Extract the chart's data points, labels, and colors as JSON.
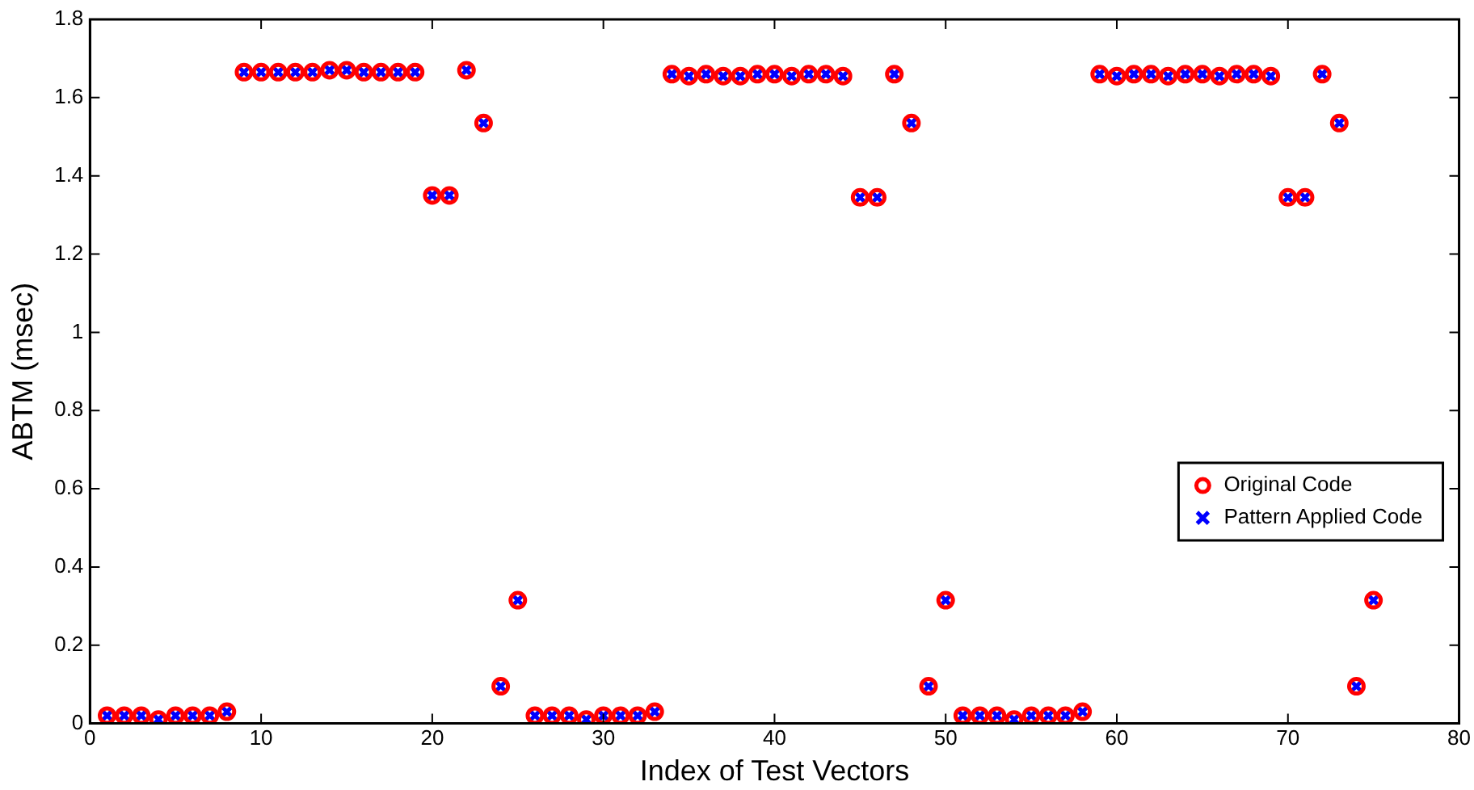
{
  "chart_data": {
    "type": "scatter",
    "xlabel": "Index of Test Vectors",
    "ylabel": "ABTM (msec)",
    "x": [
      1,
      2,
      3,
      4,
      5,
      6,
      7,
      8,
      9,
      10,
      11,
      12,
      13,
      14,
      15,
      16,
      17,
      18,
      19,
      20,
      21,
      22,
      23,
      24,
      25,
      26,
      27,
      28,
      29,
      30,
      31,
      32,
      33,
      34,
      35,
      36,
      37,
      38,
      39,
      40,
      41,
      42,
      43,
      44,
      45,
      46,
      47,
      48,
      49,
      50,
      51,
      52,
      53,
      54,
      55,
      56,
      57,
      58,
      59,
      60,
      61,
      62,
      63,
      64,
      65,
      66,
      67,
      68,
      69,
      70,
      71,
      72,
      73,
      74,
      75
    ],
    "series": [
      {
        "name": "Original Code",
        "color": "#ff0000",
        "marker": "circle",
        "values": [
          0.02,
          0.02,
          0.02,
          0.01,
          0.02,
          0.02,
          0.02,
          0.03,
          1.665,
          1.665,
          1.665,
          1.665,
          1.665,
          1.67,
          1.67,
          1.665,
          1.665,
          1.665,
          1.665,
          1.35,
          1.35,
          1.67,
          1.535,
          0.095,
          0.315,
          0.02,
          0.02,
          0.02,
          0.01,
          0.02,
          0.02,
          0.02,
          0.03,
          1.66,
          1.655,
          1.66,
          1.655,
          1.655,
          1.66,
          1.66,
          1.655,
          1.66,
          1.66,
          1.655,
          1.345,
          1.345,
          1.66,
          1.535,
          0.095,
          0.315,
          0.02,
          0.02,
          0.02,
          0.01,
          0.02,
          0.02,
          0.02,
          0.03,
          1.66,
          1.655,
          1.66,
          1.66,
          1.655,
          1.66,
          1.66,
          1.655,
          1.66,
          1.66,
          1.655,
          1.345,
          1.345,
          1.66,
          1.535,
          0.095,
          0.315
        ]
      },
      {
        "name": "Pattern Applied Code",
        "color": "#0000ff",
        "marker": "cross",
        "values": [
          0.02,
          0.02,
          0.02,
          0.01,
          0.02,
          0.02,
          0.02,
          0.03,
          1.665,
          1.665,
          1.665,
          1.665,
          1.665,
          1.67,
          1.67,
          1.665,
          1.665,
          1.665,
          1.665,
          1.35,
          1.35,
          1.67,
          1.535,
          0.095,
          0.315,
          0.02,
          0.02,
          0.02,
          0.01,
          0.02,
          0.02,
          0.02,
          0.03,
          1.66,
          1.655,
          1.66,
          1.655,
          1.655,
          1.66,
          1.66,
          1.655,
          1.66,
          1.66,
          1.655,
          1.345,
          1.345,
          1.66,
          1.535,
          0.095,
          0.315,
          0.02,
          0.02,
          0.02,
          0.01,
          0.02,
          0.02,
          0.02,
          0.03,
          1.66,
          1.655,
          1.66,
          1.66,
          1.655,
          1.66,
          1.66,
          1.655,
          1.66,
          1.66,
          1.655,
          1.345,
          1.345,
          1.66,
          1.535,
          0.095,
          0.315
        ]
      }
    ],
    "xlim": [
      0,
      80
    ],
    "xticks": [
      0,
      10,
      20,
      30,
      40,
      50,
      60,
      70,
      80
    ],
    "ylim": [
      0,
      1.8
    ],
    "yticks": [
      0,
      0.2,
      0.4,
      0.6,
      0.8,
      1,
      1.2,
      1.4,
      1.6,
      1.8
    ],
    "grid": false,
    "legend": "right"
  }
}
